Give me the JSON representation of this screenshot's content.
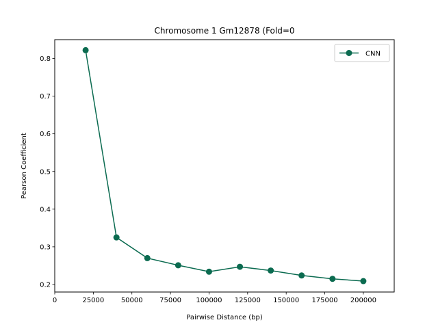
{
  "chart_data": {
    "type": "line",
    "title": "Chromosome 1 Gm12878 (Fold=0",
    "xlabel": "Pairwise Distance (bp)",
    "ylabel": "Pearson Coefficient",
    "xlim": [
      0,
      220000
    ],
    "ylim": [
      0.18,
      0.85
    ],
    "xticks": [
      0,
      25000,
      50000,
      75000,
      100000,
      125000,
      150000,
      175000,
      200000
    ],
    "yticks": [
      0.2,
      0.3,
      0.4,
      0.5,
      0.6,
      0.7,
      0.8
    ],
    "grid": false,
    "legend_position": "top-right",
    "x": [
      20000,
      40000,
      60000,
      80000,
      100000,
      120000,
      140000,
      160000,
      180000,
      200000
    ],
    "series": [
      {
        "name": "CNN",
        "color": "#0b6b50",
        "marker": "circle",
        "values": [
          0.822,
          0.325,
          0.27,
          0.251,
          0.234,
          0.247,
          0.237,
          0.224,
          0.215,
          0.209
        ]
      }
    ]
  }
}
